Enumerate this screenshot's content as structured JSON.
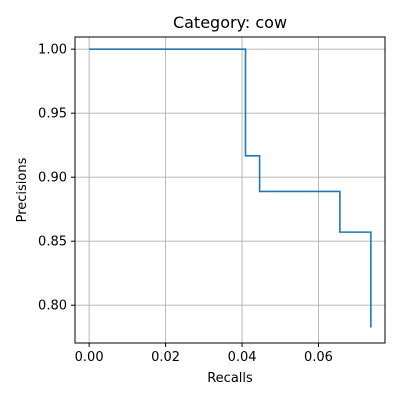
{
  "chart_data": {
    "type": "line",
    "drawstyle": "steps-post",
    "title": "Category: cow",
    "xlabel": "Recalls",
    "ylabel": "Precisions",
    "xlim": [
      -0.0037,
      0.0774
    ],
    "ylim": [
      0.7705,
      1.0095
    ],
    "xticks": [
      0.0,
      0.02,
      0.04,
      0.06
    ],
    "xtick_labels": [
      "0.00",
      "0.02",
      "0.04",
      "0.06"
    ],
    "yticks": [
      0.8,
      0.85,
      0.9,
      0.95,
      1.0
    ],
    "ytick_labels": [
      "0.80",
      "0.85",
      "0.90",
      "0.95",
      "1.00"
    ],
    "grid": true,
    "series": [
      {
        "name": "cow",
        "color": "#1f77b4",
        "x": [
          0.0,
          0.0409,
          0.0409,
          0.0446,
          0.0446,
          0.0656,
          0.0656,
          0.0737,
          0.0737
        ],
        "y": [
          1.0,
          1.0,
          0.9167,
          0.9167,
          0.8889,
          0.8889,
          0.8571,
          0.8571,
          0.7826
        ]
      }
    ]
  }
}
